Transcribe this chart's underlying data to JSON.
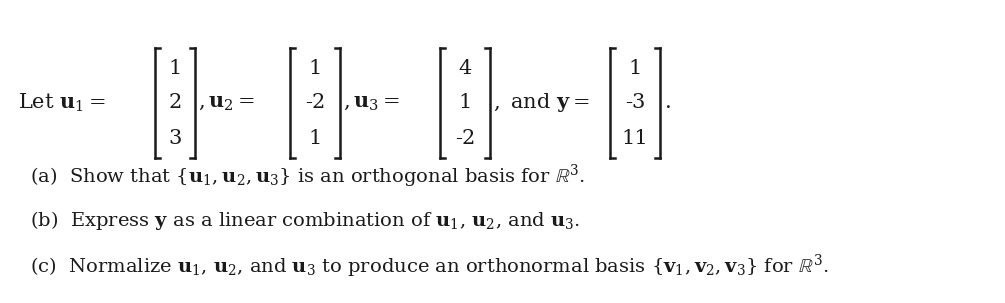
{
  "background_color": "#ffffff",
  "text_color": "#1a1a1a",
  "font_size_main": 15,
  "font_size_parts": 14,
  "line1": {
    "u1": [
      "1",
      "2",
      "3"
    ],
    "u2": [
      "1",
      "-2",
      "1"
    ],
    "u3": [
      "4",
      "1",
      "-2"
    ],
    "y": [
      "1",
      "-3",
      "11"
    ]
  },
  "parts": [
    "(a)  Show that $\\{\\mathbf{u}_1, \\mathbf{u}_2, \\mathbf{u}_3\\}$ is an orthogonal basis for $\\mathbb{R}^3$.",
    "(b)  Express $\\mathbf{y}$ as a linear combination of $\\mathbf{u}_1$, $\\mathbf{u}_2$, and $\\mathbf{u}_3$.",
    "(c)  Normalize $\\mathbf{u}_1$, $\\mathbf{u}_2$, and $\\mathbf{u}_3$ to produce an orthonormal basis $\\{\\mathbf{v}_1, \\mathbf{v}_2, \\mathbf{v}_3\\}$ for $\\mathbb{R}^3$."
  ]
}
